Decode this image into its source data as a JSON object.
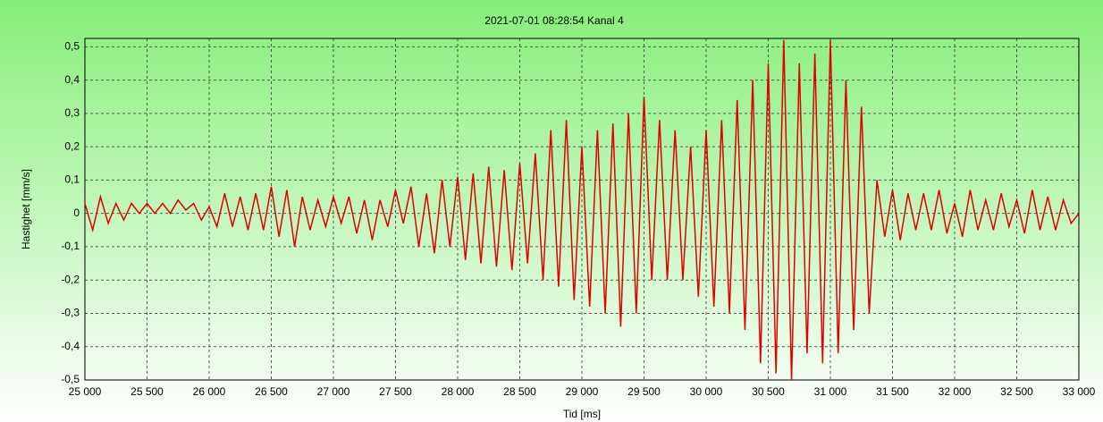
{
  "chart_data": {
    "type": "line",
    "title": "2021-07-01  08:28:54  Kanal 4",
    "x_label": "Tid [ms]",
    "y_label": "Hastighet [mm/s]",
    "xlim": [
      25000,
      33000
    ],
    "ylim": [
      -0.5,
      0.525
    ],
    "xticks": [
      {
        "value": 25000,
        "label": "25 000"
      },
      {
        "value": 25500,
        "label": "25 500"
      },
      {
        "value": 26000,
        "label": "26 000"
      },
      {
        "value": 26500,
        "label": "26 500"
      },
      {
        "value": 27000,
        "label": "27 000"
      },
      {
        "value": 27500,
        "label": "27 500"
      },
      {
        "value": 28000,
        "label": "28 000"
      },
      {
        "value": 28500,
        "label": "28 500"
      },
      {
        "value": 29000,
        "label": "29 000"
      },
      {
        "value": 29500,
        "label": "29 500"
      },
      {
        "value": 30000,
        "label": "30 000"
      },
      {
        "value": 30500,
        "label": "30 500"
      },
      {
        "value": 31000,
        "label": "31 000"
      },
      {
        "value": 31500,
        "label": "31 500"
      },
      {
        "value": 32000,
        "label": "32 000"
      },
      {
        "value": 32500,
        "label": "32 500"
      },
      {
        "value": 33000,
        "label": "33 000"
      }
    ],
    "yticks": [
      {
        "value": 0.5,
        "label": "0,5"
      },
      {
        "value": 0.4,
        "label": "0,4"
      },
      {
        "value": 0.3,
        "label": "0,3"
      },
      {
        "value": 0.2,
        "label": "0,2"
      },
      {
        "value": 0.1,
        "label": "0,1"
      },
      0,
      {
        "value": -0.1,
        "label": "-0,1"
      },
      {
        "value": -0.2,
        "label": "-0,2"
      },
      {
        "value": -0.3,
        "label": "-0,3"
      },
      {
        "value": -0.4,
        "label": "-0,4"
      },
      {
        "value": -0.5,
        "label": "-0,5"
      }
    ],
    "grid": true,
    "x": [
      25000,
      25062.5,
      25125,
      25187.5,
      25250,
      25312.5,
      25375,
      25437.5,
      25500,
      25562.5,
      25625,
      25687.5,
      25750,
      25812.5,
      25875,
      25937.5,
      26000,
      26062.5,
      26125,
      26187.5,
      26250,
      26312.5,
      26375,
      26437.5,
      26500,
      26562.5,
      26625,
      26687.5,
      26750,
      26812.5,
      26875,
      26937.5,
      27000,
      27062.5,
      27125,
      27187.5,
      27250,
      27312.5,
      27375,
      27437.5,
      27500,
      27562.5,
      27625,
      27687.5,
      27750,
      27812.5,
      27875,
      27937.5,
      28000,
      28062.5,
      28125,
      28187.5,
      28250,
      28312.5,
      28375,
      28437.5,
      28500,
      28562.5,
      28625,
      28687.5,
      28750,
      28812.5,
      28875,
      28937.5,
      29000,
      29062.5,
      29125,
      29187.5,
      29250,
      29312.5,
      29375,
      29437.5,
      29500,
      29562.5,
      29625,
      29687.5,
      29750,
      29812.5,
      29875,
      29937.5,
      30000,
      30062.5,
      30125,
      30187.5,
      30250,
      30312.5,
      30375,
      30437.5,
      30500,
      30562.5,
      30625,
      30687.5,
      30750,
      30812.5,
      30875,
      30937.5,
      31000,
      31062.5,
      31125,
      31187.5,
      31250,
      31312.5,
      31375,
      31437.5,
      31500,
      31562.5,
      31625,
      31687.5,
      31750,
      31812.5,
      31875,
      31937.5,
      32000,
      32062.5,
      32125,
      32187.5,
      32250,
      32312.5,
      32375,
      32437.5,
      32500,
      32562.5,
      32625,
      32687.5,
      32750,
      32812.5,
      32875,
      32937.5,
      33000
    ],
    "series": [
      {
        "name": "Kanal 4",
        "color": "#e00000",
        "values": [
          0.03,
          -0.05,
          0.05,
          -0.03,
          0.03,
          -0.02,
          0.03,
          0.0,
          0.03,
          0.0,
          0.03,
          0.0,
          0.04,
          0.01,
          0.03,
          -0.02,
          0.02,
          -0.04,
          0.06,
          -0.04,
          0.05,
          -0.05,
          0.06,
          -0.05,
          0.08,
          -0.07,
          0.07,
          -0.1,
          0.05,
          -0.05,
          0.04,
          -0.04,
          0.05,
          -0.03,
          0.05,
          -0.06,
          0.04,
          -0.08,
          0.04,
          -0.04,
          0.07,
          -0.03,
          0.08,
          -0.1,
          0.06,
          -0.12,
          0.1,
          -0.1,
          0.11,
          -0.14,
          0.12,
          -0.15,
          0.14,
          -0.16,
          0.13,
          -0.17,
          0.15,
          -0.15,
          0.18,
          -0.2,
          0.25,
          -0.22,
          0.28,
          -0.26,
          0.2,
          -0.28,
          0.25,
          -0.3,
          0.27,
          -0.34,
          0.3,
          -0.3,
          0.35,
          -0.2,
          0.28,
          -0.2,
          0.25,
          -0.2,
          0.2,
          -0.25,
          0.25,
          -0.28,
          0.28,
          -0.3,
          0.34,
          -0.35,
          0.4,
          -0.45,
          0.45,
          -0.48,
          0.52,
          -0.5,
          0.45,
          -0.42,
          0.48,
          -0.45,
          0.52,
          -0.42,
          0.4,
          -0.35,
          0.32,
          -0.3,
          0.1,
          -0.07,
          0.07,
          -0.08,
          0.06,
          -0.05,
          0.06,
          -0.05,
          0.07,
          -0.06,
          0.03,
          -0.07,
          0.07,
          -0.05,
          0.04,
          -0.05,
          0.06,
          -0.04,
          0.04,
          -0.06,
          0.07,
          -0.05,
          0.05,
          -0.05,
          0.04,
          -0.03,
          0.0
        ]
      }
    ]
  }
}
